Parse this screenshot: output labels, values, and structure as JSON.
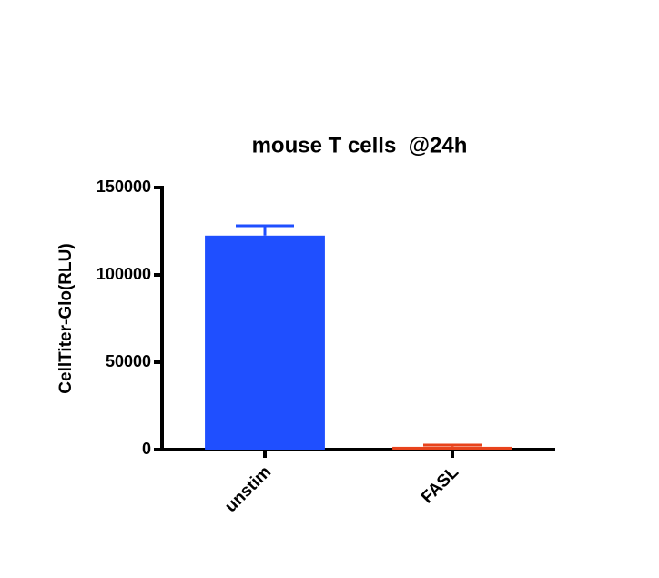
{
  "chart_data": {
    "type": "bar",
    "title": "mouse T cells  @24h",
    "y_label": "CellTiter-Glo(RLU)",
    "categories": [
      "unstim",
      "FASL"
    ],
    "values": [
      122500,
      1600
    ],
    "errors": [
      5600,
      1000
    ],
    "colors": [
      "#1f4fff",
      "#e8431c"
    ],
    "ylim": [
      0,
      150000
    ],
    "yticks": [
      0,
      50000,
      100000,
      150000
    ]
  }
}
